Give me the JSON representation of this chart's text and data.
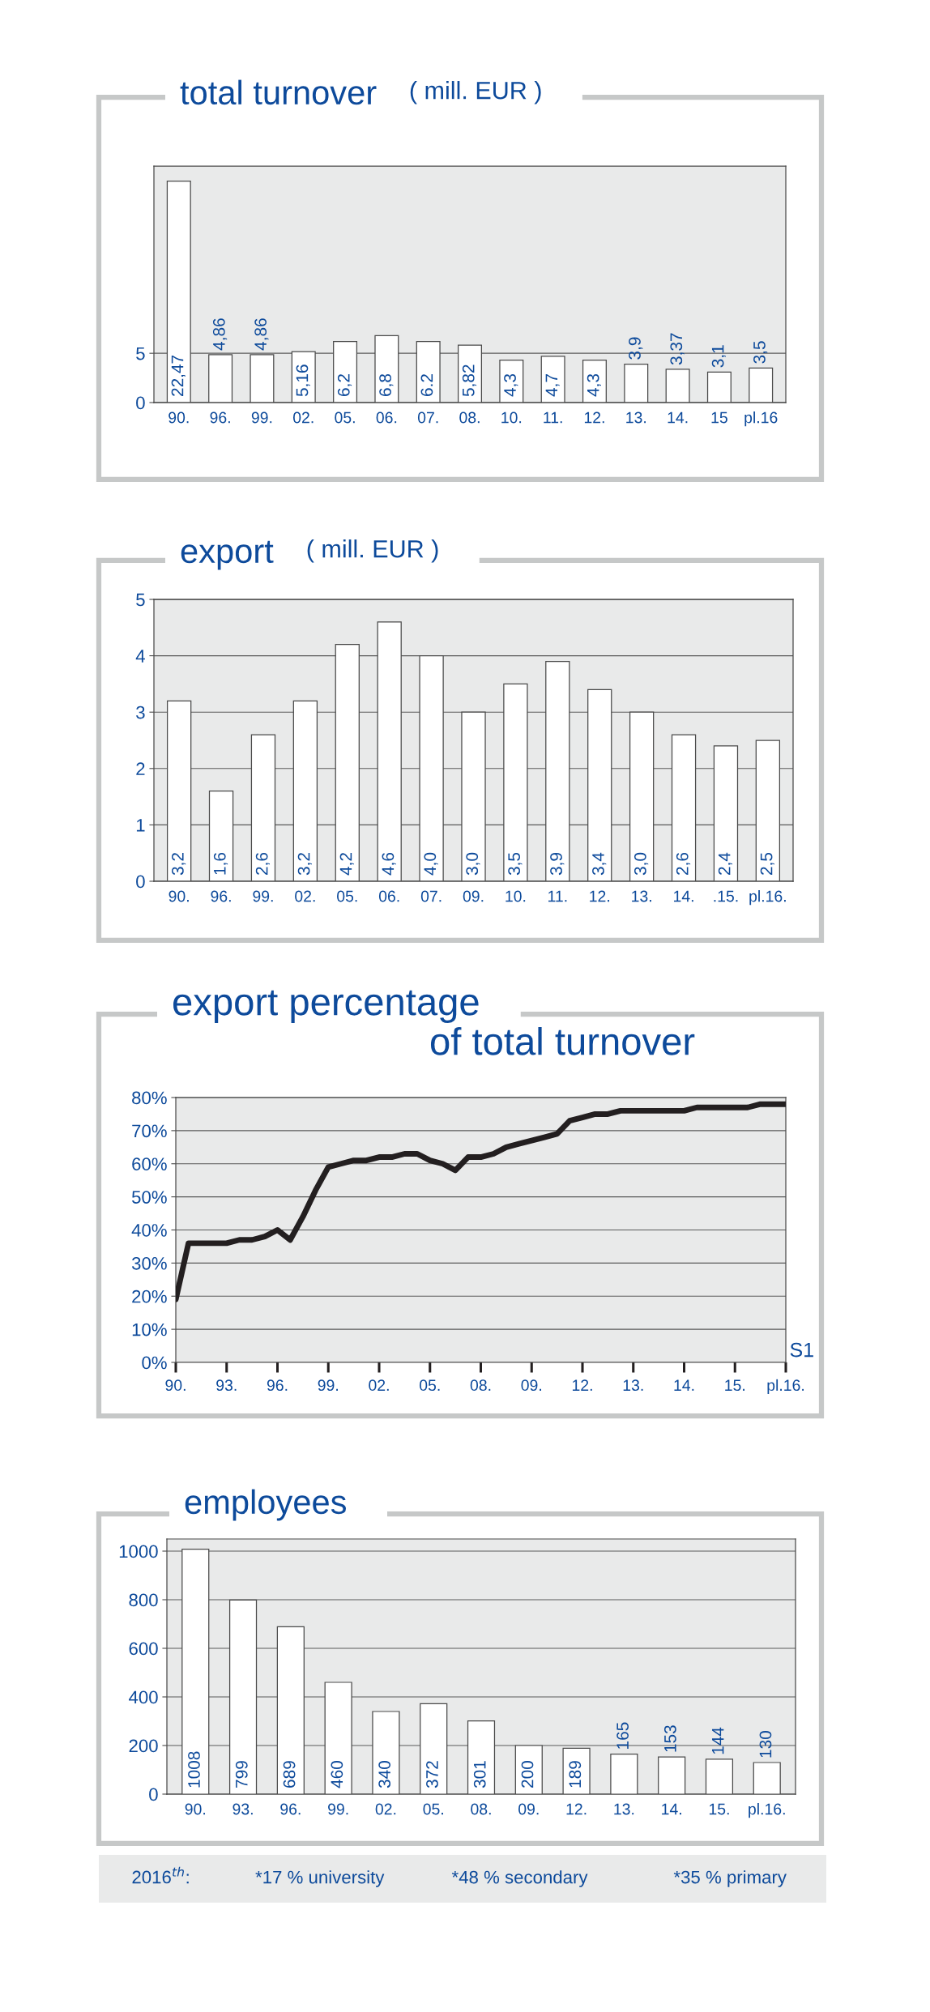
{
  "chart_data": [
    {
      "type": "bar",
      "title": "total turnover",
      "subtitle": "( mill. EUR )",
      "categories": [
        "90.",
        "96.",
        "99.",
        "02.",
        "05.",
        "06.",
        "07.",
        "08.",
        "10.",
        "11.",
        "12.",
        "13.",
        "14.",
        "15",
        "pl.16"
      ],
      "values": [
        22.47,
        4.86,
        4.86,
        5.16,
        6.2,
        6.8,
        6.2,
        5.82,
        4.3,
        4.7,
        4.3,
        3.9,
        3.37,
        3.1,
        3.5
      ],
      "value_labels": [
        "22,47",
        "4,86",
        "4,86",
        "5,16",
        "6,2",
        "6,8",
        "6.2",
        "5,82",
        "4,3",
        "4,7",
        "4,3",
        "3,9",
        "3,37",
        "3,1",
        "3,5"
      ],
      "color": "#ffffff",
      "ylim": [
        0,
        24
      ],
      "yticks": [
        0,
        5
      ],
      "grid": "y"
    },
    {
      "type": "bar",
      "title": "export",
      "subtitle": "( mill. EUR )",
      "categories": [
        "90.",
        "96.",
        "99.",
        "02.",
        "05.",
        "06.",
        "07.",
        "09.",
        "10.",
        "11.",
        "12.",
        "13.",
        "14.",
        ".15.",
        "pl.16."
      ],
      "values": [
        3.2,
        1.6,
        2.6,
        3.2,
        4.2,
        4.6,
        4.0,
        3.0,
        3.5,
        3.9,
        3.4,
        3.0,
        2.6,
        2.4,
        2.5
      ],
      "value_labels": [
        "3,2",
        "1,6",
        "2,6",
        "3,2",
        "4,2",
        "4,6",
        "4,0",
        "3,0",
        "3,5",
        "3,9",
        "3,4",
        "3,0",
        "2,6",
        "2,4",
        "2,5"
      ],
      "color": "#ffffff",
      "ylim": [
        0,
        5
      ],
      "yticks": [
        0,
        1,
        2,
        3,
        4,
        5
      ],
      "grid": "y"
    },
    {
      "type": "line",
      "title": "export percentage",
      "subtitle": "of total turnover",
      "categories": [
        "90.",
        null,
        null,
        null,
        "93.",
        null,
        null,
        null,
        "96.",
        null,
        null,
        null,
        "99.",
        null,
        null,
        null,
        "02.",
        null,
        null,
        null,
        "05.",
        null,
        null,
        null,
        "08.",
        null,
        null,
        null,
        "09.",
        null,
        null,
        null,
        "12.",
        null,
        null,
        null,
        "13.",
        null,
        null,
        null,
        "14.",
        null,
        null,
        null,
        "15.",
        null,
        null,
        null,
        "pl.16."
      ],
      "values": [
        19,
        36,
        36,
        36,
        36,
        37,
        37,
        38,
        40,
        37,
        44,
        52,
        59,
        60,
        61,
        61,
        62,
        62,
        63,
        63,
        61,
        60,
        58,
        62,
        62,
        63,
        65,
        66,
        67,
        68,
        69,
        73,
        74,
        75,
        75,
        76,
        76,
        76,
        76,
        76,
        76,
        77,
        77,
        77,
        77,
        77,
        78,
        78,
        78
      ],
      "color": "#231f20",
      "ylim": [
        0,
        80
      ],
      "yticks": [
        {
          "value": 0,
          "label": "0%"
        },
        {
          "value": 10,
          "label": "10%"
        },
        {
          "value": 20,
          "label": "20%"
        },
        {
          "value": 30,
          "label": "30%"
        },
        {
          "value": 40,
          "label": "40%"
        },
        {
          "value": 50,
          "label": "50%"
        },
        {
          "value": 60,
          "label": "60%"
        },
        {
          "value": 70,
          "label": "70%"
        },
        {
          "value": 80,
          "label": "80%"
        }
      ],
      "grid": "y",
      "annotations": [
        "S1"
      ]
    },
    {
      "type": "bar",
      "title": "employees",
      "categories": [
        "90.",
        "93.",
        "96.",
        "99.",
        "02.",
        "05.",
        "08.",
        "09.",
        "12.",
        "13.",
        "14.",
        "15.",
        "pl.16."
      ],
      "values": [
        1008,
        799,
        689,
        460,
        340,
        372,
        301,
        200,
        189,
        165,
        153,
        144,
        130
      ],
      "data_labels": true,
      "color": "#ffffff",
      "ylim": [
        0,
        1050
      ],
      "yticks": [
        0,
        200,
        400,
        600,
        800,
        1000
      ],
      "grid": "y"
    },
    {
      "type": "other",
      "annotations": [
        "2016$^{th}$:",
        "*17 % university",
        "*48 % secondary",
        "*35 % primary"
      ]
    }
  ]
}
